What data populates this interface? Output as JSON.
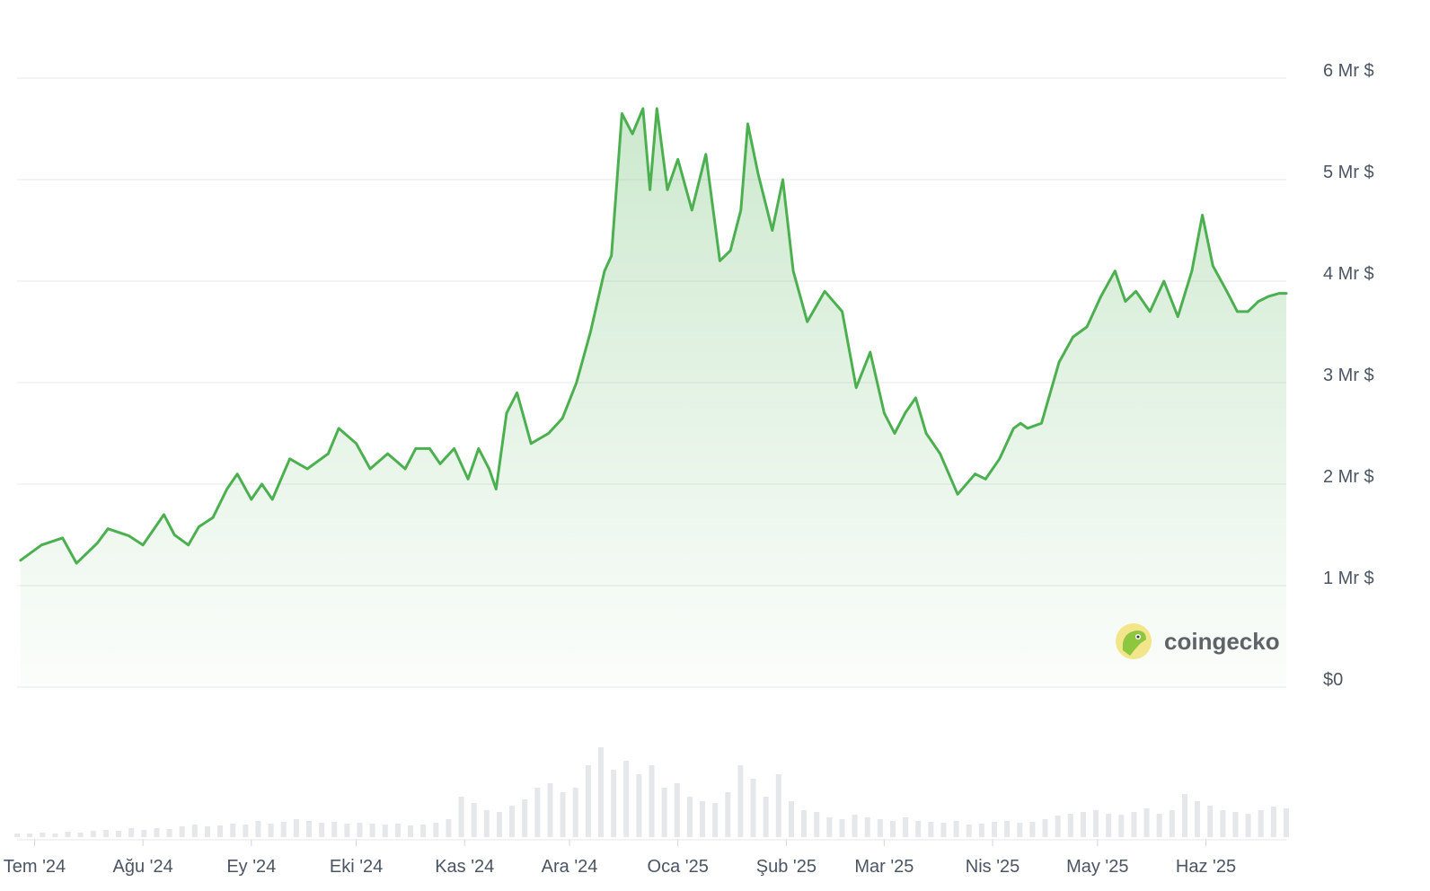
{
  "chart_data": {
    "type": "area",
    "title": "",
    "xlabel": "",
    "ylabel": "",
    "y_ticks": [
      "$0",
      "1 Mr $",
      "2 Mr $",
      "3 Mr $",
      "4 Mr $",
      "5 Mr $",
      "6 Mr $"
    ],
    "x_ticks": [
      "Tem '24",
      "Ağu '24",
      "Ey '24",
      "Eki '24",
      "Kas '24",
      "Ara '24",
      "Oca '25",
      "Şub '25",
      "Mar '25",
      "Nis '25",
      "May '25",
      "Haz '25"
    ],
    "ylim": [
      0,
      6
    ],
    "y_unit": "Mr $",
    "grid": true,
    "series": [
      {
        "color": "#4caf50",
        "x": [
          "2024-06-27",
          "2024-07-03",
          "2024-07-09",
          "2024-07-13",
          "2024-07-19",
          "2024-07-22",
          "2024-07-28",
          "2024-08-01",
          "2024-08-04",
          "2024-08-07",
          "2024-08-10",
          "2024-08-14",
          "2024-08-17",
          "2024-08-21",
          "2024-08-25",
          "2024-08-28",
          "2024-09-01",
          "2024-09-04",
          "2024-09-07",
          "2024-09-12",
          "2024-09-17",
          "2024-09-23",
          "2024-09-26",
          "2024-10-01",
          "2024-10-05",
          "2024-10-10",
          "2024-10-15",
          "2024-10-18",
          "2024-10-22",
          "2024-10-25",
          "2024-10-29",
          "2024-11-02",
          "2024-11-05",
          "2024-11-08",
          "2024-11-10",
          "2024-11-13",
          "2024-11-16",
          "2024-11-20",
          "2024-11-25",
          "2024-11-29",
          "2024-12-03",
          "2024-12-07",
          "2024-12-09",
          "2024-12-11",
          "2024-12-13",
          "2024-12-16",
          "2024-12-19",
          "2024-12-22",
          "2024-12-24",
          "2024-12-26",
          "2024-12-29",
          "2025-01-01",
          "2025-01-05",
          "2025-01-09",
          "2025-01-13",
          "2025-01-16",
          "2025-01-19",
          "2025-01-21",
          "2025-01-24",
          "2025-01-28",
          "2025-01-31",
          "2025-02-03",
          "2025-02-07",
          "2025-02-12",
          "2025-02-17",
          "2025-02-21",
          "2025-02-25",
          "2025-03-01",
          "2025-03-04",
          "2025-03-07",
          "2025-03-10",
          "2025-03-13",
          "2025-03-17",
          "2025-03-22",
          "2025-03-27",
          "2025-03-30",
          "2025-04-03",
          "2025-04-07",
          "2025-04-09",
          "2025-04-11",
          "2025-04-15",
          "2025-04-20",
          "2025-04-24",
          "2025-04-28",
          "2025-05-02",
          "2025-05-06",
          "2025-05-09",
          "2025-05-12",
          "2025-05-16",
          "2025-05-20",
          "2025-05-24",
          "2025-05-28",
          "2025-05-31",
          "2025-06-03",
          "2025-06-07",
          "2025-06-10",
          "2025-06-13",
          "2025-06-16",
          "2025-06-19",
          "2025-06-22",
          "2025-06-24"
        ],
        "y": [
          1.25,
          1.4,
          1.47,
          1.22,
          1.42,
          1.56,
          1.49,
          1.4,
          1.55,
          1.7,
          1.5,
          1.4,
          1.58,
          1.67,
          1.95,
          2.1,
          1.85,
          2.0,
          1.85,
          2.25,
          2.15,
          2.3,
          2.55,
          2.4,
          2.15,
          2.3,
          2.15,
          2.35,
          2.35,
          2.2,
          2.35,
          2.05,
          2.35,
          2.15,
          1.95,
          2.7,
          2.9,
          2.4,
          2.5,
          2.65,
          3.0,
          3.5,
          3.8,
          4.1,
          4.25,
          5.65,
          5.45,
          5.7,
          4.9,
          5.7,
          4.9,
          5.2,
          4.7,
          5.25,
          4.2,
          4.3,
          4.7,
          5.55,
          5.05,
          4.5,
          5.0,
          4.1,
          3.6,
          3.9,
          3.7,
          2.95,
          3.3,
          2.7,
          2.5,
          2.7,
          2.85,
          2.5,
          2.3,
          1.9,
          2.1,
          2.05,
          2.25,
          2.55,
          2.6,
          2.55,
          2.6,
          3.2,
          3.45,
          3.55,
          3.85,
          4.1,
          3.8,
          3.9,
          3.7,
          4.0,
          3.65,
          4.1,
          4.65,
          4.15,
          3.9,
          3.7,
          3.7,
          3.8,
          3.85,
          3.88,
          3.88
        ]
      }
    ],
    "volume": [
      0.04,
      0.04,
      0.05,
      0.04,
      0.06,
      0.05,
      0.07,
      0.08,
      0.07,
      0.1,
      0.08,
      0.1,
      0.09,
      0.12,
      0.14,
      0.12,
      0.13,
      0.15,
      0.14,
      0.18,
      0.15,
      0.17,
      0.2,
      0.18,
      0.16,
      0.17,
      0.15,
      0.16,
      0.15,
      0.14,
      0.15,
      0.13,
      0.14,
      0.16,
      0.2,
      0.45,
      0.38,
      0.3,
      0.28,
      0.35,
      0.42,
      0.55,
      0.6,
      0.5,
      0.55,
      0.8,
      1.0,
      0.75,
      0.85,
      0.7,
      0.8,
      0.55,
      0.6,
      0.45,
      0.4,
      0.38,
      0.5,
      0.8,
      0.65,
      0.45,
      0.7,
      0.4,
      0.3,
      0.28,
      0.22,
      0.2,
      0.25,
      0.22,
      0.2,
      0.18,
      0.22,
      0.18,
      0.17,
      0.16,
      0.18,
      0.14,
      0.15,
      0.17,
      0.18,
      0.16,
      0.17,
      0.2,
      0.24,
      0.26,
      0.28,
      0.3,
      0.26,
      0.25,
      0.28,
      0.32,
      0.26,
      0.3,
      0.48,
      0.4,
      0.35,
      0.3,
      0.28,
      0.26,
      0.3,
      0.34,
      0.32
    ],
    "watermark": "coingecko"
  }
}
